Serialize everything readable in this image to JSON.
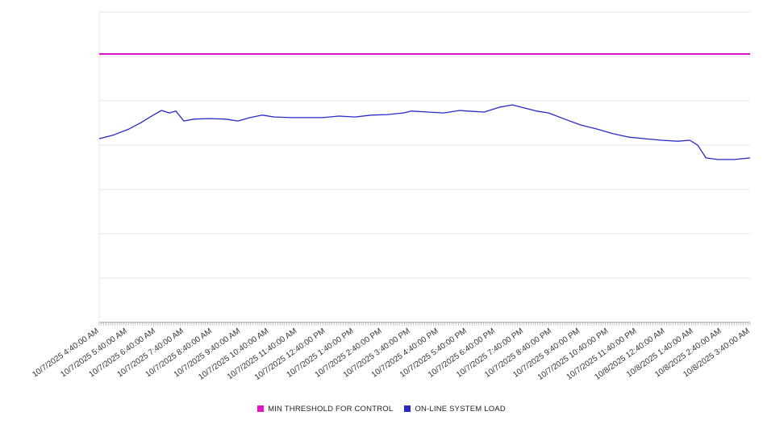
{
  "chart_data": {
    "type": "line",
    "title": "",
    "legend_position": "bottom-center",
    "colors": {
      "threshold": "#e611c4",
      "load": "#2929c8",
      "grid": "#e6e6e6",
      "axis": "#999999",
      "label_text": "#333333",
      "background": "#ffffff"
    },
    "x_axis": {
      "label_rotation_deg": -35,
      "minor_tick_count": 288,
      "labels": [
        "10/7/2025 4:40:00 AM",
        "10/7/2025 5:40:00 AM",
        "10/7/2025 6:40:00 AM",
        "10/7/2025 7:40:00 AM",
        "10/7/2025 8:40:00 AM",
        "10/7/2025 9:40:00 AM",
        "10/7/2025 10:40:00 AM",
        "10/7/2025 11:40:00 AM",
        "10/7/2025 12:40:00 PM",
        "10/7/2025 1:40:00 PM",
        "10/7/2025 2:40:00 PM",
        "10/7/2025 3:40:00 PM",
        "10/7/2025 4:40:00 PM",
        "10/7/2025 5:40:00 PM",
        "10/7/2025 6:40:00 PM",
        "10/7/2025 7:40:00 PM",
        "10/7/2025 8:40:00 PM",
        "10/7/2025 9:40:00 PM",
        "10/7/2025 10:40:00 PM",
        "10/7/2025 11:40:00 PM",
        "10/8/2025 12:40:00 AM",
        "10/8/2025 1:40:00 AM",
        "10/8/2025 2:40:00 AM",
        "10/8/2025 3:40:00 AM"
      ]
    },
    "y_axis": {
      "labels_visible": false,
      "ylim": [
        0,
        100
      ],
      "gridline_intervals": 7
    },
    "series": [
      {
        "name": "MIN THRESHOLD FOR CONTROL",
        "type": "threshold-line",
        "color": "#e611c4",
        "value": 86.5
      },
      {
        "name": "ON-LINE SYSTEM LOAD",
        "type": "line",
        "color": "#2929c8",
        "points": [
          [
            0.0,
            59.2
          ],
          [
            0.48,
            60.3
          ],
          [
            1.05,
            62.3
          ],
          [
            1.48,
            64.4
          ],
          [
            1.91,
            66.8
          ],
          [
            2.2,
            68.3
          ],
          [
            2.48,
            67.5
          ],
          [
            2.71,
            68.1
          ],
          [
            2.99,
            64.9
          ],
          [
            3.34,
            65.5
          ],
          [
            3.91,
            65.7
          ],
          [
            4.48,
            65.5
          ],
          [
            4.9,
            64.9
          ],
          [
            5.33,
            66.0
          ],
          [
            5.76,
            66.8
          ],
          [
            6.19,
            66.2
          ],
          [
            6.76,
            66.0
          ],
          [
            7.33,
            66.0
          ],
          [
            7.9,
            66.0
          ],
          [
            8.47,
            66.5
          ],
          [
            9.04,
            66.2
          ],
          [
            9.61,
            66.8
          ],
          [
            10.18,
            67.0
          ],
          [
            10.75,
            67.5
          ],
          [
            11.03,
            68.1
          ],
          [
            11.6,
            67.8
          ],
          [
            12.17,
            67.5
          ],
          [
            12.74,
            68.3
          ],
          [
            13.03,
            68.1
          ],
          [
            13.6,
            67.8
          ],
          [
            14.17,
            69.4
          ],
          [
            14.6,
            70.1
          ],
          [
            15.03,
            69.1
          ],
          [
            15.45,
            68.1
          ],
          [
            15.88,
            67.5
          ],
          [
            16.45,
            65.5
          ],
          [
            17.02,
            63.6
          ],
          [
            17.59,
            62.3
          ],
          [
            18.16,
            60.8
          ],
          [
            18.73,
            59.7
          ],
          [
            19.3,
            59.2
          ],
          [
            19.87,
            58.7
          ],
          [
            20.44,
            58.4
          ],
          [
            20.87,
            58.7
          ],
          [
            21.15,
            57.1
          ],
          [
            21.44,
            53.0
          ],
          [
            21.87,
            52.5
          ],
          [
            22.44,
            52.5
          ],
          [
            23.0,
            53.0
          ]
        ]
      }
    ]
  }
}
